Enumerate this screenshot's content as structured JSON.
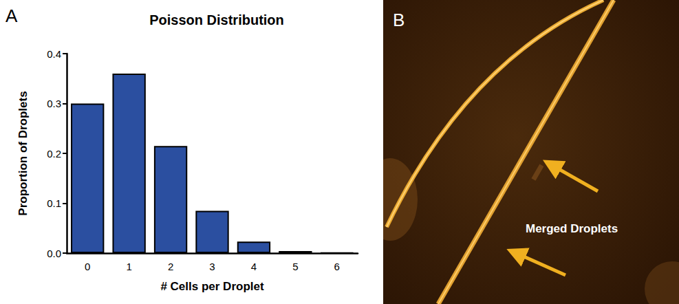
{
  "chart_data": {
    "type": "bar",
    "title": "Poisson Distribution",
    "x_label": "# Cells per Droplet",
    "y_label": "Proportion of Droplets",
    "categories": [
      "0",
      "1",
      "2",
      "3",
      "4",
      "5",
      "6"
    ],
    "values": [
      0.3,
      0.36,
      0.215,
      0.085,
      0.023,
      0.004,
      0.001
    ],
    "color": "#2b4fa0",
    "ylim": [
      0,
      0.4
    ],
    "yticks": [
      {
        "value": 0,
        "label": "0.0"
      },
      0.1,
      0.2,
      0.3,
      0.4
    ],
    "grid": false
  },
  "panel_a": {
    "label": "A"
  },
  "panel_b": {
    "label": "B",
    "annotation": "Merged Droplets"
  }
}
